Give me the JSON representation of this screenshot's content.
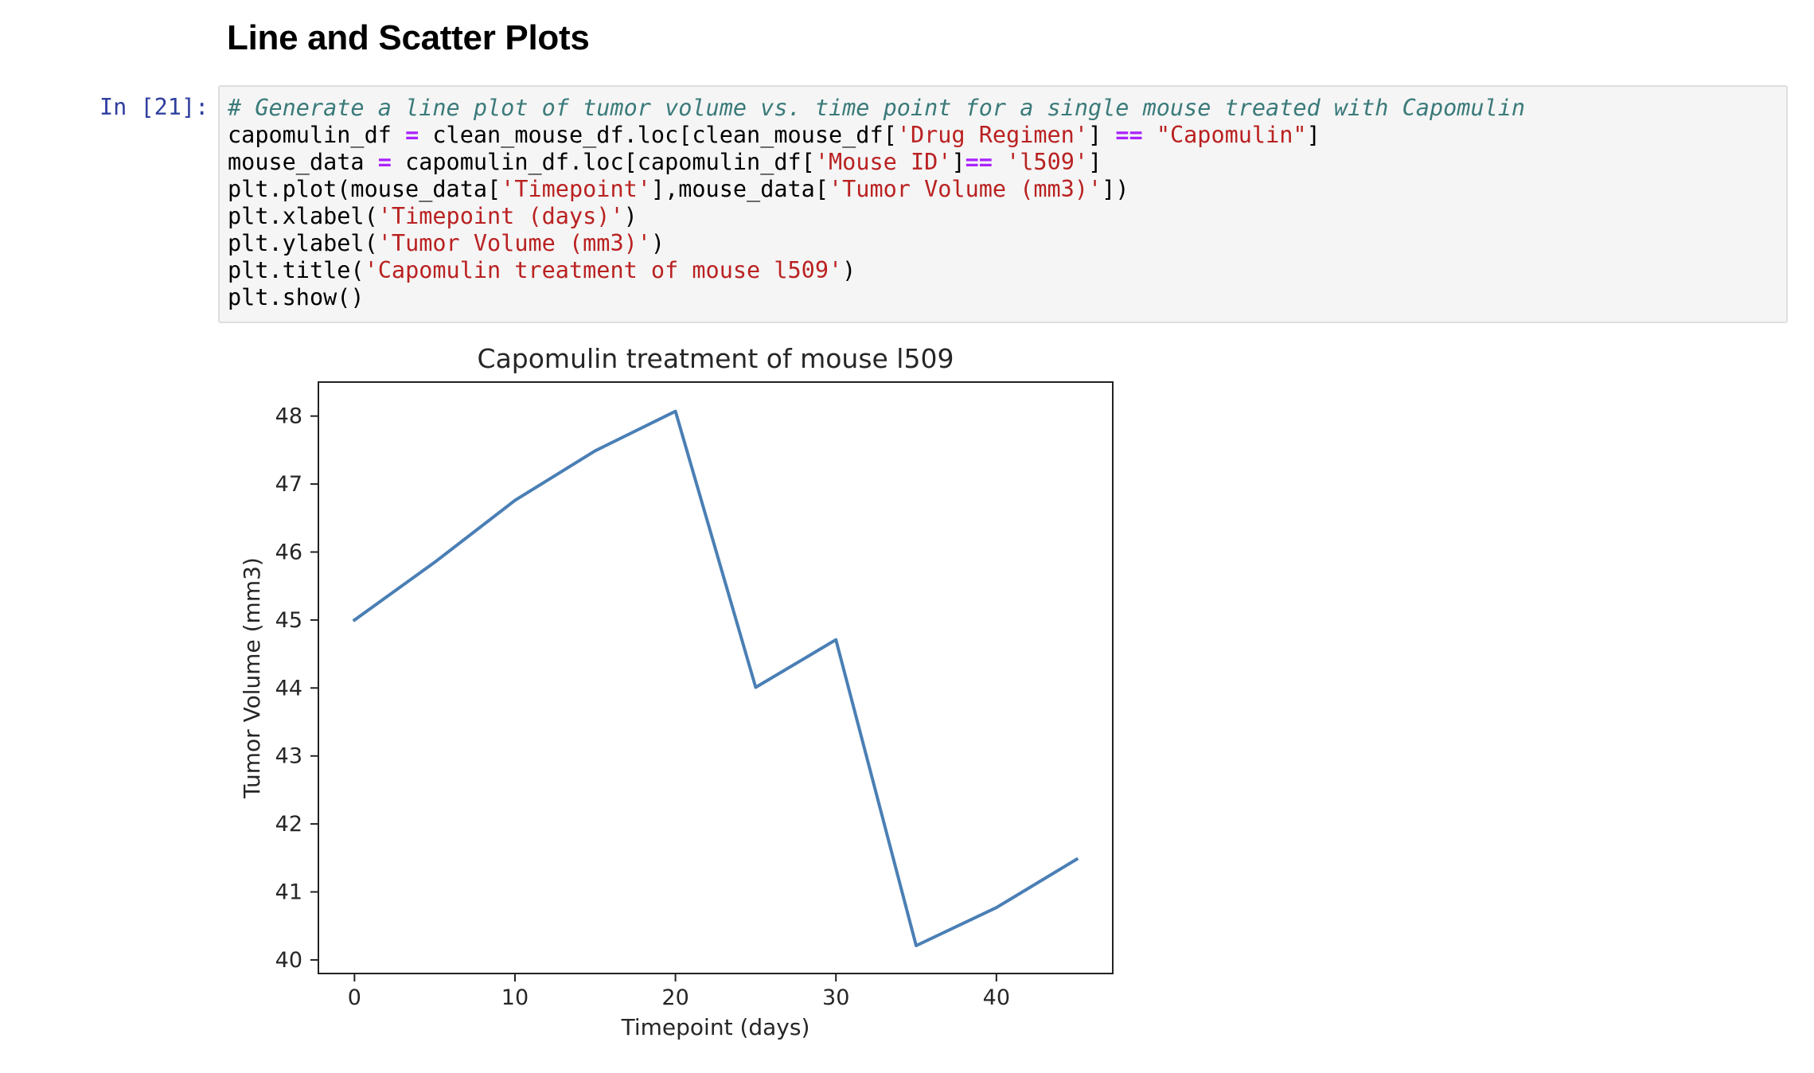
{
  "heading": "Line and Scatter Plots",
  "cell": {
    "prompt": "In [21]:",
    "lines": [
      [
        {
          "t": "# Generate a line plot of tumor volume vs. time point for a single mouse treated with Capomulin",
          "k": "comment"
        }
      ],
      [
        {
          "t": "capomulin_df ",
          "k": "plain"
        },
        {
          "t": "=",
          "k": "op"
        },
        {
          "t": " clean_mouse_df.loc[clean_mouse_df[",
          "k": "plain"
        },
        {
          "t": "'Drug Regimen'",
          "k": "str"
        },
        {
          "t": "] ",
          "k": "plain"
        },
        {
          "t": "==",
          "k": "op"
        },
        {
          "t": " ",
          "k": "plain"
        },
        {
          "t": "\"Capomulin\"",
          "k": "str"
        },
        {
          "t": "]",
          "k": "plain"
        }
      ],
      [
        {
          "t": "mouse_data ",
          "k": "plain"
        },
        {
          "t": "=",
          "k": "op"
        },
        {
          "t": " capomulin_df.loc[capomulin_df[",
          "k": "plain"
        },
        {
          "t": "'Mouse ID'",
          "k": "str"
        },
        {
          "t": "]",
          "k": "plain"
        },
        {
          "t": "==",
          "k": "op"
        },
        {
          "t": " ",
          "k": "plain"
        },
        {
          "t": "'l509'",
          "k": "str"
        },
        {
          "t": "]",
          "k": "plain"
        }
      ],
      [
        {
          "t": "plt.plot(mouse_data[",
          "k": "plain"
        },
        {
          "t": "'Timepoint'",
          "k": "str"
        },
        {
          "t": "],mouse_data[",
          "k": "plain"
        },
        {
          "t": "'Tumor Volume (mm3)'",
          "k": "str"
        },
        {
          "t": "])",
          "k": "plain"
        }
      ],
      [
        {
          "t": "plt.xlabel(",
          "k": "plain"
        },
        {
          "t": "'Timepoint (days)'",
          "k": "str"
        },
        {
          "t": ")",
          "k": "plain"
        }
      ],
      [
        {
          "t": "plt.ylabel(",
          "k": "plain"
        },
        {
          "t": "'Tumor Volume (mm3)'",
          "k": "str"
        },
        {
          "t": ")",
          "k": "plain"
        }
      ],
      [
        {
          "t": "plt.title(",
          "k": "plain"
        },
        {
          "t": "'Capomulin treatment of mouse l509'",
          "k": "str"
        },
        {
          "t": ")",
          "k": "plain"
        }
      ],
      [
        {
          "t": "plt.show()",
          "k": "plain"
        }
      ]
    ]
  },
  "chart_data": {
    "type": "line",
    "title": "Capomulin treatment of mouse l509",
    "xlabel": "Timepoint (days)",
    "ylabel": "Tumor Volume (mm3)",
    "xlim": [
      -2.25,
      47.25
    ],
    "ylim": [
      39.8,
      48.5
    ],
    "xticks": [
      0,
      10,
      20,
      30,
      40
    ],
    "yticks": [
      40,
      41,
      42,
      43,
      44,
      45,
      46,
      47,
      48
    ],
    "grid": false,
    "series": [
      {
        "color": "#4a7fb5",
        "x": [
          0,
          5,
          10,
          15,
          20,
          25,
          30,
          35,
          40,
          45
        ],
        "y": [
          45.0,
          45.85,
          46.76,
          47.49,
          48.07,
          44.01,
          44.71,
          40.21,
          40.77,
          41.48
        ]
      }
    ]
  }
}
